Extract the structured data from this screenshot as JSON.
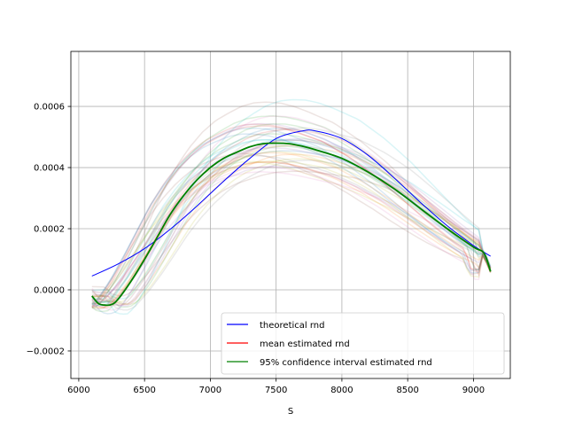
{
  "chart_data": {
    "type": "line",
    "title": "",
    "xlabel": "S",
    "ylabel": "",
    "xlim": [
      5940,
      9280
    ],
    "ylim": [
      -0.00029,
      0.00078
    ],
    "grid": true,
    "legend_position": "lower-right",
    "x_ticks": [
      6000,
      6500,
      7000,
      7500,
      8000,
      8500,
      9000
    ],
    "x_tick_labels": [
      "6000",
      "6500",
      "7000",
      "7500",
      "8000",
      "8500",
      "9000"
    ],
    "y_ticks": [
      -0.0002,
      0.0,
      0.0002,
      0.0004,
      0.0006
    ],
    "y_tick_labels": [
      "−0.0002",
      "0.0000",
      "0.0002",
      "0.0004",
      "0.0006"
    ],
    "legend": [
      {
        "label": "theoretical rnd",
        "color": "#0000ff"
      },
      {
        "label": "mean estimated rnd",
        "color": "#ff0000"
      },
      {
        "label": "95% confidence interval estimated rnd",
        "color": "#008000"
      }
    ],
    "series": [
      {
        "name": "theoretical rnd",
        "color": "#0000ff",
        "x": [
          6100,
          6300,
          6500,
          6700,
          6900,
          7100,
          7300,
          7500,
          7700,
          7800,
          8000,
          8200,
          8400,
          8600,
          8800,
          9000,
          9130
        ],
        "y": [
          4.5e-05,
          8.5e-05,
          0.000135,
          0.0002,
          0.000275,
          0.000355,
          0.00043,
          0.000495,
          0.00052,
          0.00052,
          0.000495,
          0.00044,
          0.000365,
          0.000285,
          0.00021,
          0.000145,
          0.00011
        ]
      },
      {
        "name": "95% confidence interval estimated rnd",
        "color": "#008000",
        "x": [
          6100,
          6150,
          6200,
          6250,
          6300,
          6400,
          6500,
          6600,
          6700,
          6800,
          6900,
          7000,
          7100,
          7200,
          7300,
          7400,
          7500,
          7600,
          7700,
          7800,
          8000,
          8200,
          8400,
          8600,
          8800,
          9000,
          9080,
          9130
        ],
        "y": [
          -2e-05,
          -4.5e-05,
          -5e-05,
          -4.8e-05,
          -3e-05,
          3e-05,
          0.0001,
          0.000175,
          0.00025,
          0.00031,
          0.00036,
          0.0004,
          0.00043,
          0.00045,
          0.000468,
          0.000478,
          0.00048,
          0.000478,
          0.00047,
          0.000458,
          0.00043,
          0.000385,
          0.00033,
          0.000265,
          0.0002,
          0.00014,
          0.00012,
          6e-05
        ]
      }
    ]
  }
}
